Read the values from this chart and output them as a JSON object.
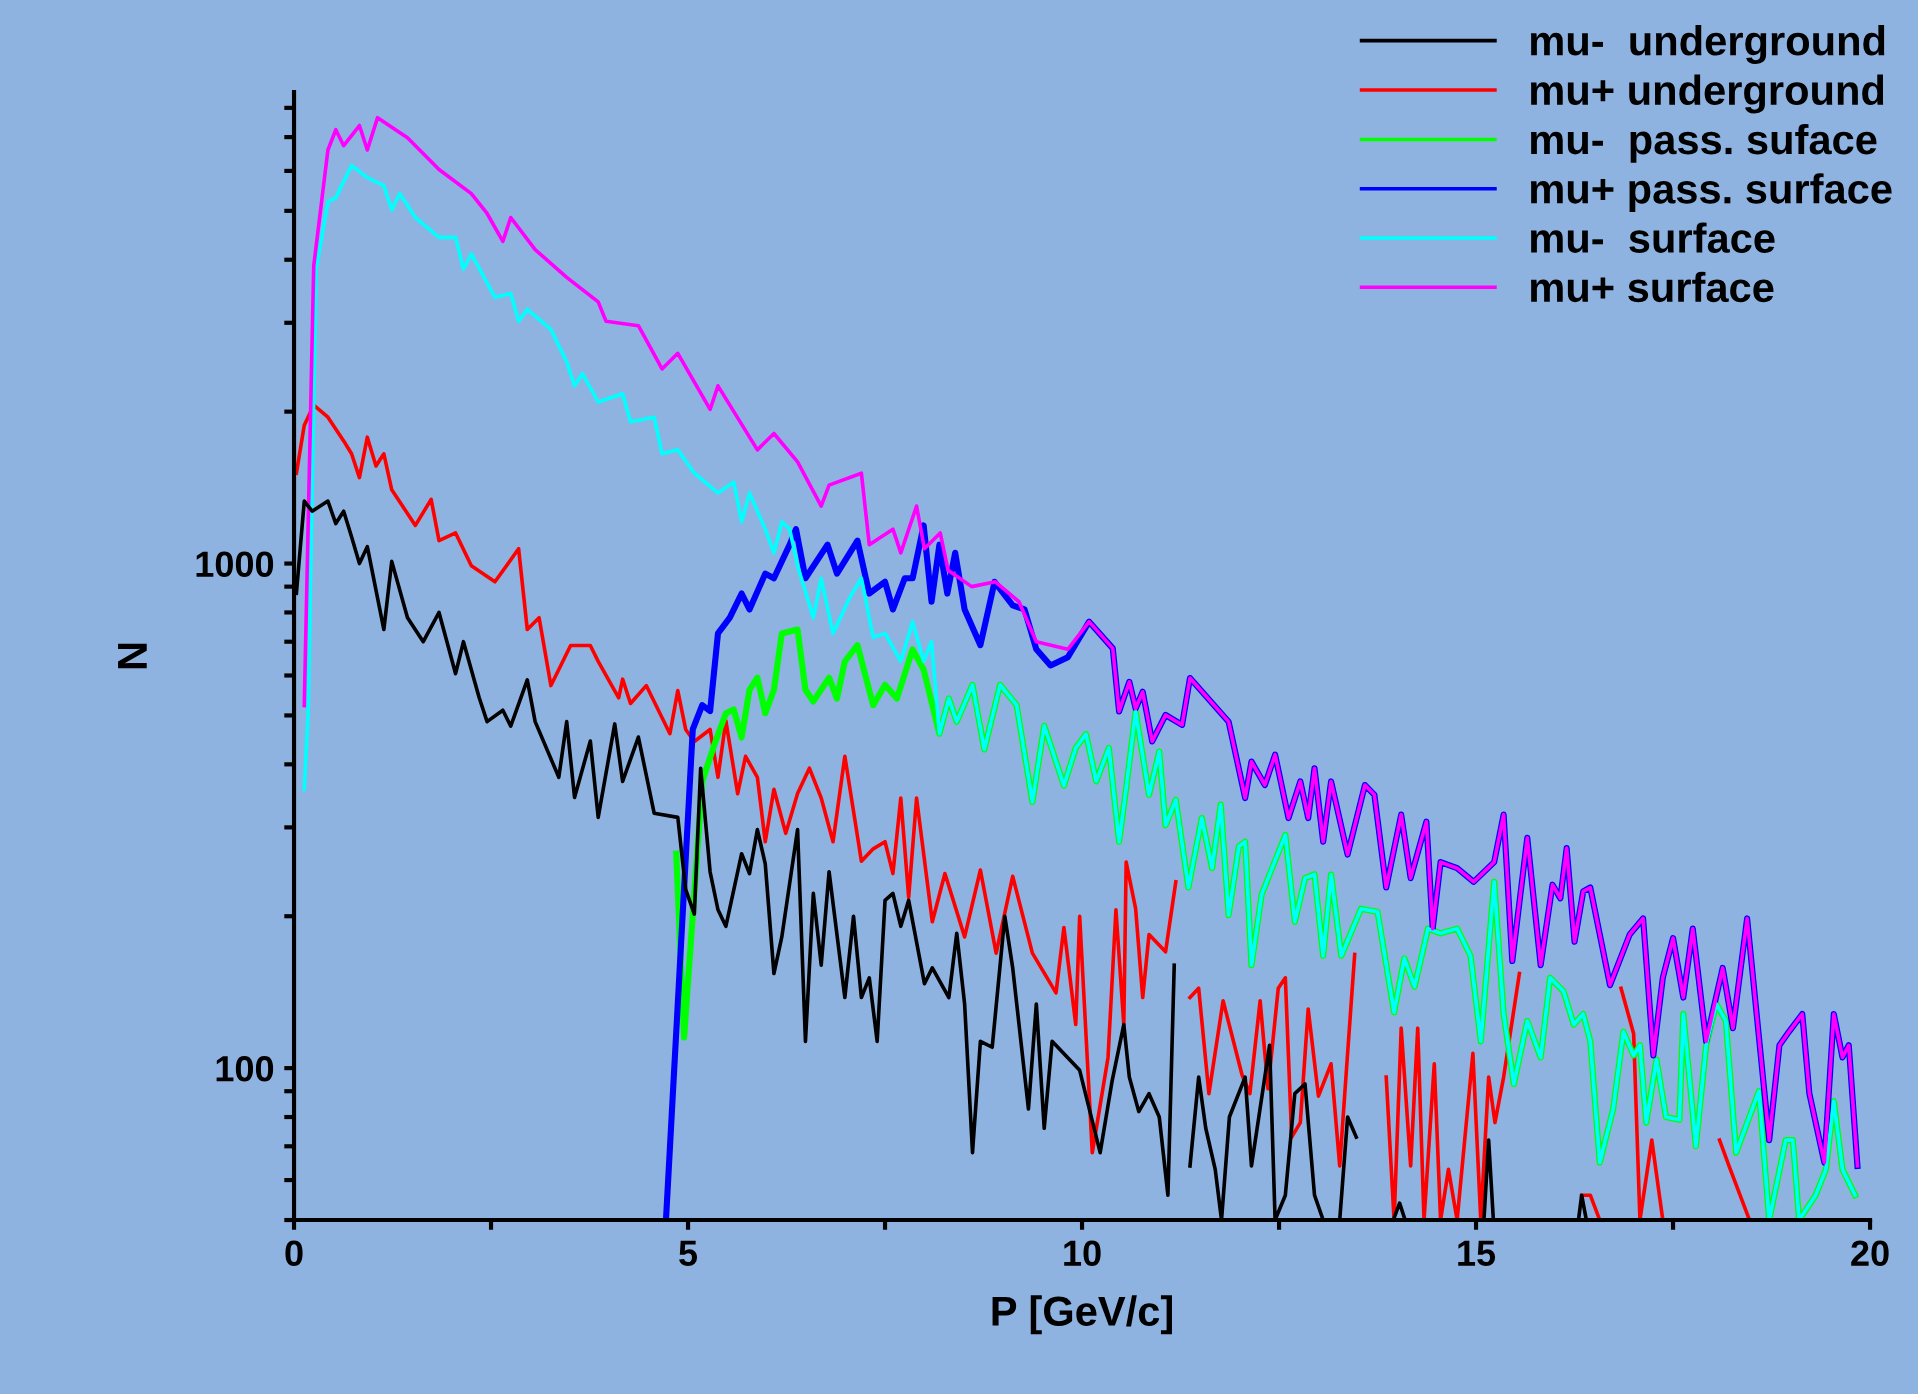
{
  "chart_data": {
    "type": "line",
    "xlabel": "P [GeV/c]",
    "ylabel": "N",
    "log": "y",
    "grid": false,
    "legend": "top right",
    "marker": "none",
    "line_style": "solid",
    "xlim": [
      0,
      20
    ],
    "xticks": [
      0,
      {
        "value": 2.5,
        "label": null
      },
      5,
      {
        "value": 7.5,
        "label": null
      },
      10,
      {
        "value": 12.5,
        "label": null
      },
      15,
      {
        "value": 17.5,
        "label": null
      },
      20
    ],
    "ylim": [
      50,
      8600
    ],
    "yticks": [
      {
        "value": 50,
        "label": null
      },
      {
        "value": 60,
        "label": null
      },
      {
        "value": 70,
        "label": null
      },
      {
        "value": 80,
        "label": null
      },
      {
        "value": 90,
        "label": null
      },
      100,
      {
        "value": 200,
        "label": null
      },
      {
        "value": 300,
        "label": null
      },
      {
        "value": 400,
        "label": null
      },
      {
        "value": 500,
        "label": null
      },
      {
        "value": 600,
        "label": null
      },
      {
        "value": 700,
        "label": null
      },
      {
        "value": 800,
        "label": null
      },
      {
        "value": 900,
        "label": null
      },
      1000,
      {
        "value": 2000,
        "label": null
      },
      {
        "value": 3000,
        "label": null
      },
      {
        "value": 4000,
        "label": null
      },
      {
        "value": 5000,
        "label": null
      },
      {
        "value": 6000,
        "label": null
      },
      {
        "value": 7000,
        "label": null
      },
      {
        "value": 8000,
        "label": null
      }
    ],
    "series": [
      {
        "name": "mu-  underground",
        "color": "#000000",
        "x": [
          0.03,
          0.13,
          0.23,
          0.43,
          0.53,
          0.63,
          0.73,
          0.83,
          0.93,
          1.14,
          1.24,
          1.44,
          1.64,
          1.84,
          2.05,
          2.15,
          2.35,
          2.45,
          2.65,
          2.75,
          2.96,
          3.06,
          3.36,
          3.46,
          3.56,
          3.76,
          3.86,
          4.07,
          4.17,
          4.37,
          4.57,
          4.87,
          4.97,
          5.08,
          5.16,
          5.28,
          5.38,
          5.48,
          5.68,
          5.78,
          5.88,
          5.98,
          6.09,
          6.19,
          6.39,
          6.49,
          6.59,
          6.69,
          6.79,
          6.99,
          7.1,
          7.2,
          7.3,
          7.4,
          7.5,
          7.6,
          7.7,
          7.8,
          8.0,
          8.1,
          8.31,
          8.41,
          8.51,
          8.61,
          8.71,
          8.86,
          9.02,
          9.12,
          9.32,
          9.42,
          9.52,
          9.62,
          9.97,
          10.23,
          10.38,
          10.53,
          10.6,
          10.72,
          10.85,
          10.98,
          11.09,
          11.17,
          11.27,
          11.37,
          11.48,
          11.57,
          11.69,
          11.77,
          11.87,
          12.07,
          12.15,
          12.38,
          12.45,
          12.58,
          12.7,
          12.83,
          12.95,
          13.06,
          13.27,
          13.37,
          13.48,
          13.7,
          13.95,
          14.03,
          14.1,
          14.5,
          15.1,
          15.16,
          15.22,
          15.8,
          16.3,
          16.34,
          16.4
        ],
        "values": [
          873,
          1330,
          1270,
          1330,
          1200,
          1270,
          1130,
          1000,
          1080,
          740,
          1010,
          781,
          700,
          800,
          605,
          700,
          542,
          486,
          512,
          476,
          588,
          486,
          377,
          486,
          344,
          445,
          314,
          481,
          370,
          453,
          320,
          314,
          226,
          202,
          393,
          245,
          206,
          191,
          266,
          243,
          297,
          254,
          154,
          182,
          297,
          113,
          222,
          160,
          245,
          138,
          200,
          138,
          151,
          113,
          215,
          222,
          191,
          215,
          147,
          158,
          138,
          185,
          134,
          68,
          113,
          110,
          200,
          158,
          83,
          134,
          76,
          113,
          99,
          68,
          94,
          122,
          96,
          82,
          89,
          80,
          56,
          160,
          null,
          64,
          96,
          76,
          63,
          50,
          80,
          96,
          64,
          111,
          50,
          56,
          89,
          93,
          56,
          50,
          50,
          80,
          73,
          null,
          50,
          54,
          50,
          null,
          50,
          72,
          50,
          null,
          50,
          56,
          50
        ]
      },
      {
        "name": "mu+ underground",
        "color": "#ff0000",
        "x": [
          0.03,
          0.13,
          0.25,
          0.43,
          0.63,
          0.73,
          0.83,
          0.93,
          1.04,
          1.14,
          1.24,
          1.54,
          1.74,
          1.84,
          2.05,
          2.25,
          2.55,
          2.85,
          2.96,
          3.11,
          3.26,
          3.51,
          3.76,
          3.86,
          4.12,
          4.17,
          4.27,
          4.47,
          4.77,
          4.87,
          4.97,
          5.08,
          5.28,
          5.38,
          5.48,
          5.63,
          5.73,
          5.88,
          5.98,
          6.09,
          6.24,
          6.39,
          6.54,
          6.69,
          6.84,
          6.99,
          7.2,
          7.35,
          7.5,
          7.6,
          7.7,
          7.8,
          7.9,
          8.1,
          8.26,
          8.51,
          8.71,
          8.91,
          9.12,
          9.37,
          9.67,
          9.77,
          9.92,
          9.97,
          10.13,
          10.33,
          10.43,
          10.53,
          10.56,
          10.68,
          10.77,
          10.85,
          11.06,
          11.19,
          11.28,
          11.37,
          11.48,
          11.61,
          11.79,
          12.03,
          12.13,
          12.26,
          12.36,
          12.49,
          12.58,
          12.66,
          12.77,
          12.87,
          13.0,
          13.16,
          13.27,
          13.37,
          13.46,
          13.66,
          13.86,
          13.96,
          14.05,
          14.17,
          14.26,
          14.34,
          14.47,
          14.55,
          14.65,
          14.76,
          14.96,
          15.06,
          15.16,
          15.24,
          15.35,
          15.55,
          15.9,
          16.34,
          16.45,
          16.57,
          16.7,
          16.84,
          17.0,
          17.08,
          17.23,
          17.37,
          17.7,
          18.09,
          18.21,
          18.47
        ],
        "values": [
          1510,
          1880,
          2060,
          1950,
          1750,
          1650,
          1480,
          1780,
          1560,
          1650,
          1400,
          1190,
          1340,
          1110,
          1150,
          990,
          920,
          1070,
          740,
          781,
          573,
          688,
          688,
          640,
          542,
          590,
          528,
          573,
          460,
          560,
          469,
          444,
          469,
          377,
          488,
          350,
          415,
          377,
          281,
          357,
          292,
          350,
          393,
          343,
          281,
          415,
          257,
          272,
          281,
          243,
          343,
          218,
          343,
          195,
          243,
          182,
          247,
          169,
          240,
          169,
          141,
          190,
          122,
          200,
          68,
          105,
          206,
          122,
          256,
          207,
          138,
          184,
          170,
          234,
          null,
          138,
          144,
          89,
          136,
          97,
          89,
          136,
          91,
          144,
          151,
          73,
          78,
          131,
          88,
          102,
          64,
          107,
          168,
          null,
          96,
          50,
          120,
          64,
          120,
          50,
          102,
          50,
          63,
          50,
          107,
          50,
          96,
          78,
          96,
          154,
          null,
          56,
          56,
          50,
          null,
          144,
          117,
          50,
          72,
          50,
          null,
          72,
          64,
          50
        ]
      },
      {
        "name": "mu-  pass. suface",
        "color": "#00ff00",
        "x": [
          4.85,
          4.95,
          5.18,
          5.33,
          5.48,
          5.58,
          5.68,
          5.78,
          5.88,
          5.98,
          6.09,
          6.19,
          6.39,
          6.49,
          6.59,
          6.79,
          6.89,
          6.99,
          7.15,
          7.35,
          7.5,
          7.65,
          7.85,
          7.99,
          8.19,
          8.31,
          8.41,
          8.61,
          8.76,
          8.96,
          9.17,
          9.37,
          9.52,
          9.77,
          9.92,
          10.05,
          10.18,
          10.34,
          10.47,
          10.56,
          10.68,
          10.85,
          10.98,
          11.06,
          11.19,
          11.35,
          11.52,
          11.65,
          11.76,
          11.86,
          11.99,
          12.07,
          12.15,
          12.28,
          12.58,
          12.7,
          12.83,
          12.95,
          13.06,
          13.16,
          13.29,
          13.54,
          13.75,
          13.96,
          14.09,
          14.22,
          14.39,
          14.55,
          14.76,
          14.93,
          15.06,
          15.23,
          15.35,
          15.48,
          15.65,
          15.82,
          15.94,
          16.11,
          16.24,
          16.36,
          16.45,
          16.57,
          16.74,
          16.87,
          17.0,
          17.08,
          17.16,
          17.29,
          17.41,
          17.58,
          17.63,
          17.79,
          17.92,
          18.05,
          18.17,
          18.3,
          18.59,
          18.72,
          18.93,
          19.02,
          19.1,
          19.31,
          19.44,
          19.54,
          19.65,
          19.81
        ],
        "values": [
          266,
          115,
          370,
          436,
          505,
          514,
          452,
          562,
          594,
          505,
          562,
          727,
          740,
          562,
          533,
          594,
          540,
          640,
          689,
          524,
          575,
          540,
          676,
          616,
          460,
          540,
          486,
          575,
          428,
          575,
          524,
          337,
          477,
          363,
          431,
          459,
          370,
          431,
          281,
          359,
          509,
          348,
          424,
          303,
          340,
          228,
          313,
          249,
          333,
          201,
          275,
          281,
          160,
          221,
          290,
          195,
          238,
          242,
          167,
          242,
          167,
          207,
          204,
          129,
          165,
          145,
          189,
          185,
          189,
          167,
          113,
          234,
          128,
          93,
          124,
          105,
          151,
          142,
          122,
          128,
          113,
          65,
          83,
          118,
          106,
          111,
          78,
          104,
          80,
          79,
          128,
          70,
          111,
          134,
          124,
          68,
          90,
          50,
          72,
          72,
          50,
          56,
          63,
          86,
          63,
          56
        ]
      },
      {
        "name": "mu+ pass. surface",
        "color": "#0000ff",
        "x": [
          4.72,
          5.06,
          5.18,
          5.28,
          5.38,
          5.53,
          5.68,
          5.78,
          5.98,
          6.09,
          6.29,
          6.37,
          6.49,
          6.77,
          6.89,
          7.15,
          7.3,
          7.5,
          7.6,
          7.75,
          7.85,
          7.99,
          8.09,
          8.19,
          8.29,
          8.39,
          8.51,
          8.71,
          8.89,
          9.12,
          9.27,
          9.42,
          9.6,
          9.82,
          10.09,
          10.39,
          10.47,
          10.6,
          10.68,
          10.77,
          10.89,
          11.06,
          11.27,
          11.37,
          11.86,
          12.07,
          12.15,
          12.32,
          12.45,
          12.62,
          12.77,
          12.87,
          12.95,
          13.06,
          13.16,
          13.37,
          13.59,
          13.71,
          13.86,
          14.05,
          14.17,
          14.37,
          14.45,
          14.55,
          14.76,
          14.97,
          15.23,
          15.35,
          15.46,
          15.65,
          15.82,
          15.97,
          16.07,
          16.15,
          16.25,
          16.36,
          16.45,
          16.7,
          16.95,
          17.12,
          17.25,
          17.37,
          17.5,
          17.63,
          17.75,
          17.92,
          18.13,
          18.26,
          18.44,
          18.72,
          18.85,
          18.97,
          19.14,
          19.23,
          19.42,
          19.54,
          19.65,
          19.73,
          19.84
        ],
        "values": [
          50,
          469,
          524,
          510,
          727,
          781,
          872,
          811,
          955,
          935,
          1090,
          1170,
          935,
          1090,
          955,
          1110,
          872,
          920,
          811,
          935,
          935,
          1190,
          840,
          1090,
          872,
          1050,
          811,
          689,
          920,
          826,
          811,
          676,
          628,
          652,
          767,
          679,
          509,
          583,
          516,
          557,
          444,
          501,
          479,
          593,
          486,
          343,
          405,
          364,
          418,
          313,
          370,
          313,
          393,
          281,
          370,
          265,
          364,
          348,
          228,
          318,
          238,
          308,
          189,
          256,
          249,
          234,
          256,
          318,
          163,
          286,
          160,
          231,
          217,
          273,
          178,
          224,
          228,
          146,
          184,
          198,
          106,
          151,
          181,
          138,
          189,
          113,
          158,
          120,
          198,
          72,
          111,
          118,
          128,
          89,
          65,
          128,
          105,
          111,
          64
        ]
      },
      {
        "name": "mu-  surface",
        "color": "#00ffff",
        "x": [
          0.13,
          0.18,
          0.28,
          0.43,
          0.53,
          0.73,
          0.93,
          1.14,
          1.24,
          1.34,
          1.54,
          1.84,
          2.05,
          2.15,
          2.25,
          2.55,
          2.75,
          2.85,
          2.96,
          3.26,
          3.46,
          3.56,
          3.66,
          3.86,
          4.17,
          4.27,
          4.57,
          4.67,
          4.87,
          5.08,
          5.38,
          5.58,
          5.68,
          5.78,
          5.98,
          6.09,
          6.19,
          6.29,
          6.39,
          6.59,
          6.69,
          6.84,
          7.05,
          7.2,
          7.35,
          7.5,
          7.7,
          7.85,
          7.99,
          8.09,
          8.19,
          8.31,
          8.41,
          8.61,
          8.76,
          8.96,
          9.17,
          9.37,
          9.52,
          9.77,
          9.92,
          10.05,
          10.18,
          10.34,
          10.47,
          10.56,
          10.68,
          10.85,
          10.98,
          11.06,
          11.19,
          11.35,
          11.52,
          11.65,
          11.76,
          11.86,
          11.99,
          12.07,
          12.15,
          12.28,
          12.58,
          12.7,
          12.83,
          12.95,
          13.06,
          13.16,
          13.29,
          13.54,
          13.75,
          13.96,
          14.09,
          14.22,
          14.39,
          14.55,
          14.76,
          14.93,
          15.06,
          15.23,
          15.35,
          15.48,
          15.65,
          15.82,
          15.94,
          16.11,
          16.24,
          16.36,
          16.45,
          16.57,
          16.74,
          16.87,
          17.0,
          17.08,
          17.16,
          17.29,
          17.41,
          17.58,
          17.63,
          17.79,
          17.92,
          18.05,
          18.17,
          18.3,
          18.59,
          18.72,
          18.93,
          19.02,
          19.1,
          19.31,
          19.44,
          19.54,
          19.65,
          19.81
        ],
        "values": [
          357,
          511,
          3830,
          5210,
          5310,
          6150,
          5820,
          5610,
          5020,
          5410,
          4850,
          4430,
          4430,
          3830,
          4110,
          3370,
          3430,
          3020,
          3190,
          2910,
          2510,
          2250,
          2380,
          2090,
          2170,
          1910,
          1950,
          1650,
          1680,
          1510,
          1380,
          1450,
          1210,
          1380,
          1170,
          1050,
          1210,
          1170,
          990,
          781,
          935,
          727,
          855,
          935,
          714,
          727,
          640,
          767,
          640,
          700,
          460,
          540,
          486,
          575,
          428,
          575,
          524,
          337,
          477,
          363,
          431,
          459,
          370,
          431,
          281,
          359,
          509,
          348,
          424,
          303,
          340,
          228,
          313,
          249,
          333,
          201,
          275,
          281,
          160,
          221,
          290,
          195,
          238,
          242,
          167,
          242,
          167,
          207,
          204,
          129,
          165,
          145,
          189,
          185,
          189,
          167,
          113,
          234,
          128,
          93,
          124,
          105,
          151,
          142,
          122,
          128,
          113,
          65,
          83,
          118,
          106,
          111,
          78,
          104,
          80,
          79,
          128,
          70,
          111,
          134,
          124,
          68,
          90,
          50,
          72,
          72,
          50,
          56,
          63,
          86,
          63,
          56
        ]
      },
      {
        "name": "mu+ surface",
        "color": "#ff00ff",
        "x": [
          0.13,
          0.25,
          0.43,
          0.53,
          0.63,
          0.83,
          0.93,
          1.06,
          1.44,
          1.84,
          2.25,
          2.45,
          2.65,
          2.75,
          3.06,
          3.46,
          3.86,
          3.96,
          4.37,
          4.67,
          4.87,
          5.28,
          5.38,
          5.88,
          6.09,
          6.39,
          6.69,
          6.79,
          7.2,
          7.3,
          7.6,
          7.7,
          7.9,
          8.0,
          8.2,
          8.3,
          8.6,
          8.9,
          9.2,
          9.42,
          9.82,
          10.09,
          10.39,
          10.47,
          10.6,
          10.68,
          10.77,
          10.89,
          11.06,
          11.27,
          11.37,
          11.86,
          12.07,
          12.15,
          12.32,
          12.45,
          12.62,
          12.77,
          12.87,
          12.95,
          13.06,
          13.16,
          13.37,
          13.59,
          13.71,
          13.86,
          14.05,
          14.17,
          14.37,
          14.45,
          14.55,
          14.76,
          14.97,
          15.23,
          15.35,
          15.46,
          15.65,
          15.82,
          15.97,
          16.07,
          16.15,
          16.25,
          16.36,
          16.45,
          16.7,
          16.95,
          17.12,
          17.25,
          17.37,
          17.5,
          17.63,
          17.75,
          17.92,
          18.13,
          18.26,
          18.44,
          18.72,
          18.85,
          18.97,
          19.14,
          19.23,
          19.42,
          19.54,
          19.65,
          19.73,
          19.84
        ],
        "values": [
          523,
          3890,
          6600,
          7240,
          6730,
          7380,
          6600,
          7650,
          6980,
          6040,
          5410,
          4940,
          4350,
          4850,
          4190,
          3690,
          3300,
          3020,
          2960,
          2430,
          2610,
          2020,
          2250,
          1680,
          1810,
          1590,
          1300,
          1430,
          1510,
          1090,
          1170,
          1050,
          1300,
          1070,
          1150,
          970,
          900,
          920,
          840,
          700,
          676,
          767,
          679,
          509,
          583,
          516,
          557,
          444,
          501,
          479,
          593,
          486,
          343,
          405,
          364,
          418,
          313,
          370,
          313,
          393,
          281,
          370,
          265,
          364,
          348,
          228,
          318,
          238,
          308,
          189,
          256,
          249,
          234,
          256,
          318,
          163,
          286,
          160,
          231,
          217,
          273,
          178,
          224,
          228,
          146,
          184,
          198,
          106,
          151,
          181,
          138,
          189,
          113,
          158,
          120,
          198,
          72,
          111,
          118,
          128,
          89,
          65,
          128,
          105,
          111,
          64
        ]
      }
    ]
  }
}
